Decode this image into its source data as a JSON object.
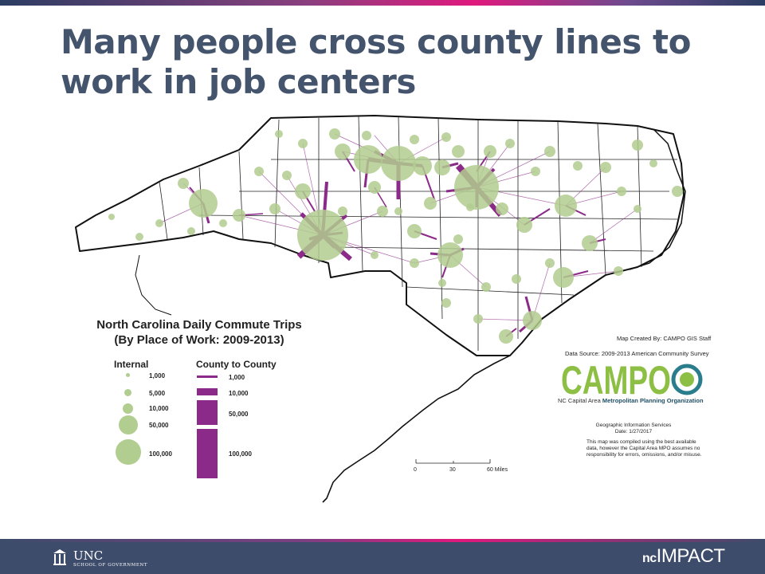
{
  "title": "Many people cross county lines to work in job centers",
  "legend": {
    "title_line1": "North Carolina Daily Commute Trips",
    "title_line2": "(By Place of Work: 2009-2013)",
    "internal_heading": "Internal",
    "flow_heading": "County to County",
    "internal_labels": [
      "1,000",
      "5,000",
      "10,000",
      "50,000",
      "100,000"
    ],
    "flow_labels": [
      "1,000",
      "10,000",
      "50,000",
      "100,000"
    ],
    "circle_color": "#b1cd8f",
    "flow_color": "#8b2a88"
  },
  "credits": {
    "created_by": "Map Created By: CAMPO GIS Staff",
    "data_source": "Data Source:  2009-2013 American Community Survey",
    "logo_text": "CAMPO",
    "logo_sub_plain": "NC Capital Area",
    "logo_sub_bold": "Metropolitan Planning Organization",
    "gis_line1": "Geographic Information Services",
    "gis_line2": "Date: 1/27/2017",
    "disclaimer": "This map was compiled using the best available data, however the Capital Area MPO assumes no responsibility for errors, omissions, and/or misuse."
  },
  "scale": {
    "labels": [
      "0",
      "30",
      "60 Miles"
    ]
  },
  "footer": {
    "unc": "UNC",
    "unc_sub": "SCHOOL OF GOVERNMENT",
    "brand_nc": "nc",
    "brand_impact": "IMPACT"
  }
}
